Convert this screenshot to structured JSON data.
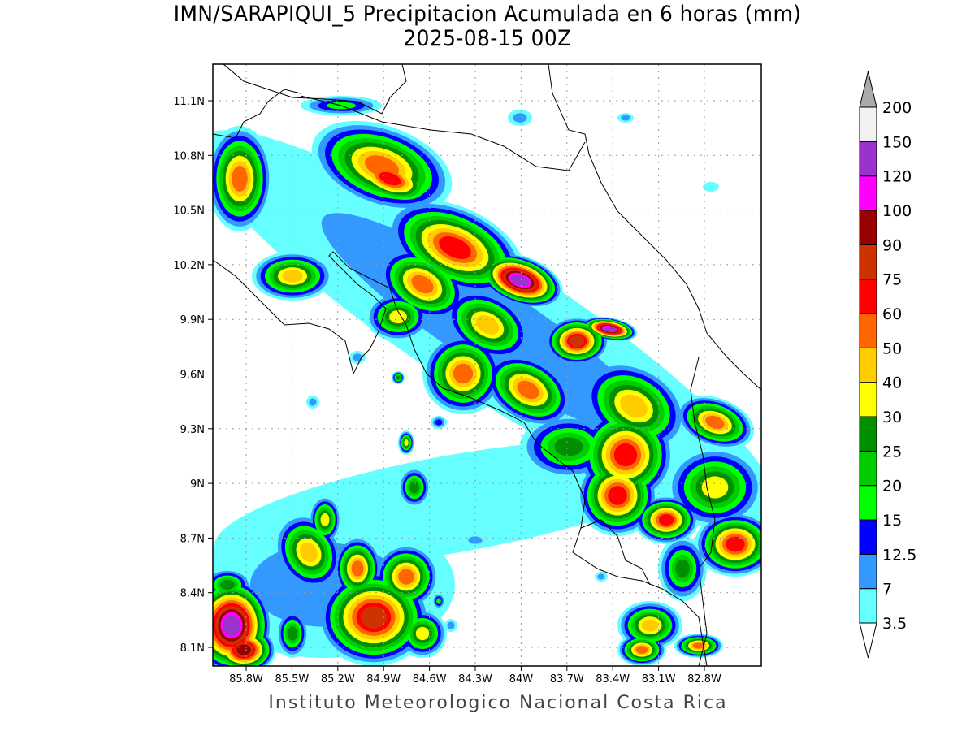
{
  "title": {
    "line1": "IMN/SARAPIQUI_5 Precipitacion Acumulada en 6 horas (mm)",
    "line2": "2025-08-15 00Z"
  },
  "footer": "Instituto Meteorologico Nacional Costa Rica",
  "map": {
    "lat_ticks": [
      "11.1N",
      "10.8N",
      "10.5N",
      "10.2N",
      "9.9N",
      "9.6N",
      "9.3N",
      "9N",
      "8.7N",
      "8.4N",
      "8.1N"
    ],
    "lon_ticks": [
      "85.8W",
      "85.5W",
      "85.2W",
      "84.9W",
      "84.6W",
      "84.3W",
      "84W",
      "83.7W",
      "83.4W",
      "83.1W",
      "82.8W"
    ],
    "grid": true
  },
  "colorbar": {
    "levels": [
      "3.5",
      "7",
      "12.5",
      "15",
      "20",
      "25",
      "30",
      "40",
      "50",
      "60",
      "75",
      "90",
      "100",
      "120",
      "150",
      "200"
    ],
    "colors": [
      "#66ffff",
      "#3399ff",
      "#0000ff",
      "#00ff00",
      "#00cc00",
      "#008f00",
      "#ffff00",
      "#ffcc00",
      "#ff6600",
      "#ff0000",
      "#cc3300",
      "#990000",
      "#ff00ff",
      "#9933cc",
      "#f2f2f2"
    ],
    "over_color": "#aaaaaa",
    "under_color": "#ffffff"
  }
}
